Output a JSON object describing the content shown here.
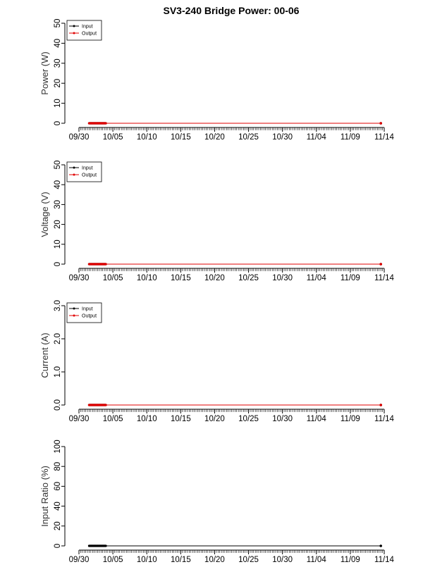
{
  "title": "SV3-240 Bridge Power: 00-06",
  "colors": {
    "input": "#000000",
    "output": "#e00000",
    "axis": "#000000"
  },
  "chart_data": [
    {
      "type": "line",
      "ylabel": "Power (W)",
      "ylim": [
        0,
        50
      ],
      "yticks": [
        "0",
        "10",
        "20",
        "30",
        "40",
        "50"
      ],
      "x_tick_labels": [
        "09/30",
        "10/05",
        "10/10",
        "10/15",
        "10/20",
        "10/25",
        "10/30",
        "11/04",
        "11/09",
        "11/14"
      ],
      "x_tick_dates": [
        "09/30",
        "10/05",
        "10/10",
        "10/15",
        "10/20",
        "10/25",
        "10/30",
        "11/04",
        "11/09",
        "11/14"
      ],
      "legend": {
        "position": "top-left",
        "entries": [
          "Input",
          "Output"
        ]
      },
      "series": [
        {
          "name": "Input",
          "color": "#000000",
          "dense_from": "10/01 12:00",
          "dense_to": "10/04",
          "single_points": [
            "11/13 12:00"
          ],
          "value": 0
        },
        {
          "name": "Output",
          "color": "#e00000",
          "dense_from": "10/01 12:00",
          "dense_to": "10/04",
          "single_points": [
            "11/13 12:00"
          ],
          "value": 0
        }
      ]
    },
    {
      "type": "line",
      "ylabel": "Voltage (V)",
      "ylim": [
        0,
        50
      ],
      "yticks": [
        "0",
        "10",
        "20",
        "30",
        "40",
        "50"
      ],
      "x_tick_labels": [
        "09/30",
        "10/05",
        "10/10",
        "10/15",
        "10/20",
        "10/25",
        "10/30",
        "11/04",
        "11/09",
        "11/14"
      ],
      "x_tick_dates": [
        "09/30",
        "10/05",
        "10/10",
        "10/15",
        "10/20",
        "10/25",
        "10/30",
        "11/04",
        "11/09",
        "11/14"
      ],
      "legend": {
        "position": "top-left",
        "entries": [
          "Input",
          "Output"
        ]
      },
      "series": [
        {
          "name": "Input",
          "color": "#000000",
          "dense_from": "10/01 12:00",
          "dense_to": "10/04",
          "single_points": [
            "11/13 12:00"
          ],
          "value": 0
        },
        {
          "name": "Output",
          "color": "#e00000",
          "dense_from": "10/01 12:00",
          "dense_to": "10/04",
          "single_points": [
            "11/13 12:00"
          ],
          "value": 0
        }
      ]
    },
    {
      "type": "line",
      "ylabel": "Current (A)",
      "ylim": [
        0,
        3
      ],
      "yticks": [
        "0.0",
        "1.0",
        "2.0",
        "3.0"
      ],
      "x_tick_labels": [
        "09/30",
        "10/05",
        "10/10",
        "10/15",
        "10/20",
        "10/25",
        "10/30",
        "11/04",
        "11/09",
        "11/14"
      ],
      "x_tick_dates": [
        "09/30",
        "10/05",
        "10/10",
        "10/15",
        "10/20",
        "10/25",
        "10/30",
        "11/04",
        "11/09",
        "11/14"
      ],
      "legend": {
        "position": "top-left",
        "entries": [
          "Input",
          "Output"
        ]
      },
      "series": [
        {
          "name": "Input",
          "color": "#000000",
          "dense_from": "10/01 12:00",
          "dense_to": "10/04",
          "single_points": [
            "11/13 12:00"
          ],
          "value": 0
        },
        {
          "name": "Output",
          "color": "#e00000",
          "dense_from": "10/01 12:00",
          "dense_to": "10/04",
          "single_points": [
            "11/13 12:00"
          ],
          "value": 0
        }
      ]
    },
    {
      "type": "line",
      "ylabel": "Input Ratio (%)",
      "ylim": [
        0,
        100
      ],
      "yticks": [
        "0",
        "20",
        "40",
        "60",
        "80",
        "100"
      ],
      "x_tick_labels": [
        "09/30",
        "10/05",
        "10/10",
        "10/15",
        "10/20",
        "10/25",
        "10/30",
        "11/04",
        "11/09",
        "11/14"
      ],
      "x_tick_dates": [
        "09/30",
        "10/05",
        "10/10",
        "10/15",
        "10/20",
        "10/25",
        "10/30",
        "11/04",
        "11/09",
        "11/14"
      ],
      "legend": null,
      "series": [
        {
          "name": "Input Ratio",
          "color": "#000000",
          "dense_from": "10/01 12:00",
          "dense_to": "10/04",
          "single_points": [
            "11/13 12:00"
          ],
          "value": 0
        }
      ]
    }
  ]
}
